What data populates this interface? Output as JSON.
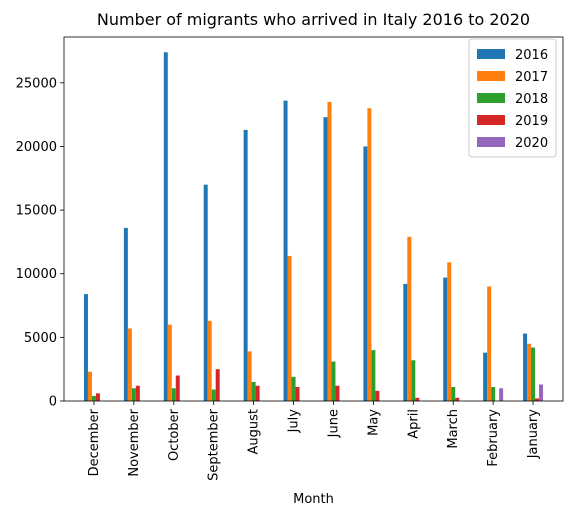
{
  "chart_data": {
    "type": "bar",
    "title": "Number of migrants who arrived in Italy 2016 to 2020",
    "xlabel": "Month",
    "ylabel": "",
    "categories": [
      "December",
      "November",
      "October",
      "September",
      "August",
      "July",
      "June",
      "May",
      "April",
      "March",
      "February",
      "January"
    ],
    "ylim": [
      0,
      28600
    ],
    "yticks": [
      0,
      5000,
      10000,
      15000,
      20000,
      25000
    ],
    "grid": false,
    "legend_position": "top-right",
    "series": [
      {
        "name": "2016",
        "color": "#1f77b4",
        "values": [
          8400,
          13600,
          27400,
          17000,
          21300,
          23600,
          22300,
          20000,
          9200,
          9700,
          3800,
          5300
        ]
      },
      {
        "name": "2017",
        "color": "#ff7f0e",
        "values": [
          2300,
          5700,
          6000,
          6300,
          3900,
          11400,
          23500,
          23000,
          12900,
          10900,
          9000,
          4500
        ]
      },
      {
        "name": "2018",
        "color": "#2ca02c",
        "values": [
          400,
          1000,
          1000,
          900,
          1500,
          1900,
          3100,
          4000,
          3200,
          1100,
          1100,
          4200
        ]
      },
      {
        "name": "2019",
        "color": "#d62728",
        "values": [
          600,
          1200,
          2000,
          2500,
          1200,
          1100,
          1200,
          800,
          250,
          250,
          0,
          200
        ]
      },
      {
        "name": "2020",
        "color": "#9467bd",
        "values": [
          0,
          0,
          0,
          0,
          0,
          0,
          0,
          0,
          0,
          0,
          1000,
          1300
        ]
      }
    ]
  }
}
